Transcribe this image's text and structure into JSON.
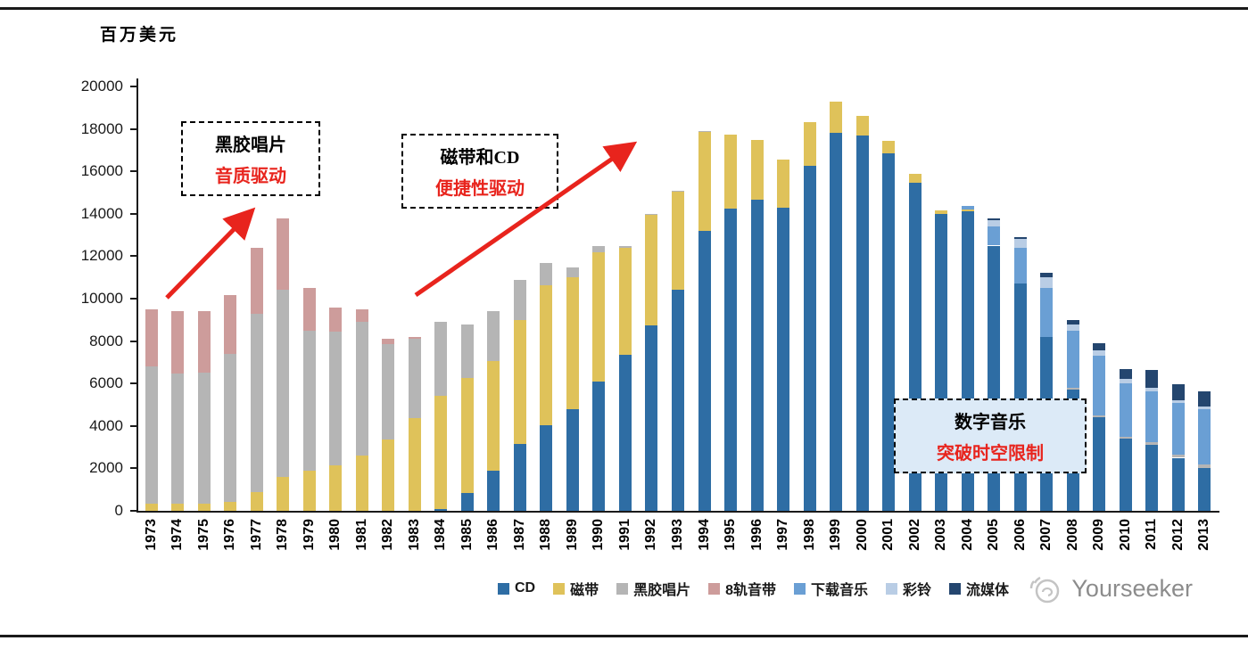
{
  "page": {
    "background": "#ffffff",
    "top_rule_color": "#1a1a1a",
    "bottom_rule_color": "#1a1a1a"
  },
  "colors": {
    "axis": "#1a1a1a",
    "annotation_red": "#e8241d",
    "arrow_red": "#e8241d",
    "digital_box_bg": "#dceaf7",
    "watermark_gray": "#8c8c8c",
    "watermark_icon_gray": "#c4c4c4"
  },
  "y_axis": {
    "title": "百万美元",
    "min": 0,
    "max": 20000,
    "tick_step": 2000
  },
  "annotations": {
    "vinyl": {
      "line1": "黑胶唱片",
      "line2": "音质驱动"
    },
    "cassette_cd": {
      "line1": "磁带和CD",
      "line2": "便捷性驱动"
    },
    "digital": {
      "line1": "数字音乐",
      "line2": "突破时空限制"
    }
  },
  "watermark": {
    "text": "Yourseeker"
  },
  "chart_data": {
    "type": "bar",
    "stacked": true,
    "title": "",
    "xlabel": "",
    "ylabel": "百万美元",
    "ylim": [
      0,
      20000
    ],
    "grid": false,
    "legend_position": "bottom",
    "categories": [
      "1973",
      "1974",
      "1975",
      "1976",
      "1977",
      "1978",
      "1979",
      "1980",
      "1981",
      "1982",
      "1983",
      "1984",
      "1985",
      "1986",
      "1987",
      "1988",
      "1989",
      "1990",
      "1991",
      "1992",
      "1993",
      "1994",
      "1995",
      "1996",
      "1997",
      "1998",
      "1999",
      "2000",
      "2001",
      "2002",
      "2003",
      "2004",
      "2005",
      "2006",
      "2007",
      "2008",
      "2009",
      "2010",
      "2011",
      "2012",
      "2013"
    ],
    "series": [
      {
        "name": "CD",
        "color": "#2e6da4",
        "values": [
          0,
          0,
          0,
          0,
          0,
          0,
          0,
          0,
          0,
          0,
          0,
          100,
          850,
          1900,
          3150,
          4050,
          4800,
          6100,
          7350,
          8750,
          10400,
          13200,
          14250,
          14650,
          14300,
          16250,
          17800,
          17700,
          16850,
          15450,
          14000,
          14100,
          12500,
          10700,
          8200,
          5700,
          4400,
          3400,
          3100,
          2500,
          2000
        ]
      },
      {
        "name": "磁带",
        "color": "#dfc25a",
        "values": [
          350,
          350,
          350,
          400,
          900,
          1600,
          1900,
          2150,
          2600,
          3350,
          4350,
          5300,
          5400,
          5150,
          5850,
          6600,
          6200,
          6100,
          5050,
          5200,
          4650,
          4650,
          3500,
          2850,
          2250,
          2050,
          1500,
          900,
          600,
          450,
          150,
          100,
          0,
          0,
          0,
          0,
          0,
          0,
          0,
          0,
          0
        ]
      },
      {
        "name": "黑胶唱片",
        "color": "#b5b5b5",
        "values": [
          6450,
          6100,
          6150,
          7000,
          8400,
          8800,
          6600,
          6300,
          6300,
          4500,
          3750,
          3500,
          2550,
          2350,
          1900,
          1050,
          450,
          300,
          100,
          50,
          50,
          50,
          0,
          0,
          0,
          0,
          0,
          0,
          0,
          0,
          0,
          0,
          0,
          0,
          0,
          100,
          100,
          100,
          150,
          150,
          200
        ]
      },
      {
        "name": "8轨音带",
        "color": "#cd9c9b",
        "values": [
          2700,
          2950,
          2900,
          2750,
          3100,
          3400,
          2000,
          1150,
          600,
          250,
          100,
          0,
          0,
          0,
          0,
          0,
          0,
          0,
          0,
          0,
          0,
          0,
          0,
          0,
          0,
          0,
          0,
          0,
          0,
          0,
          0,
          0,
          0,
          0,
          0,
          0,
          0,
          0,
          0,
          0,
          0
        ]
      },
      {
        "name": "下载音乐",
        "color": "#6a9fd4",
        "values": [
          0,
          0,
          0,
          0,
          0,
          0,
          0,
          0,
          0,
          0,
          0,
          0,
          0,
          0,
          0,
          0,
          0,
          0,
          0,
          0,
          0,
          0,
          0,
          0,
          0,
          0,
          0,
          0,
          0,
          0,
          0,
          150,
          900,
          1700,
          2300,
          2700,
          2800,
          2500,
          2400,
          2450,
          2600
        ]
      },
      {
        "name": "彩铃",
        "color": "#b9cde5",
        "values": [
          0,
          0,
          0,
          0,
          0,
          0,
          0,
          0,
          0,
          0,
          0,
          0,
          0,
          0,
          0,
          0,
          0,
          0,
          0,
          0,
          0,
          0,
          0,
          0,
          0,
          0,
          0,
          0,
          0,
          0,
          0,
          0,
          300,
          400,
          500,
          300,
          250,
          200,
          150,
          100,
          100
        ]
      },
      {
        "name": "流媒体",
        "color": "#24466f",
        "values": [
          0,
          0,
          0,
          0,
          0,
          0,
          0,
          0,
          0,
          0,
          0,
          0,
          0,
          0,
          0,
          0,
          0,
          0,
          0,
          0,
          0,
          0,
          0,
          0,
          0,
          0,
          0,
          0,
          0,
          0,
          0,
          0,
          100,
          100,
          200,
          200,
          350,
          500,
          850,
          750,
          750
        ]
      }
    ]
  }
}
